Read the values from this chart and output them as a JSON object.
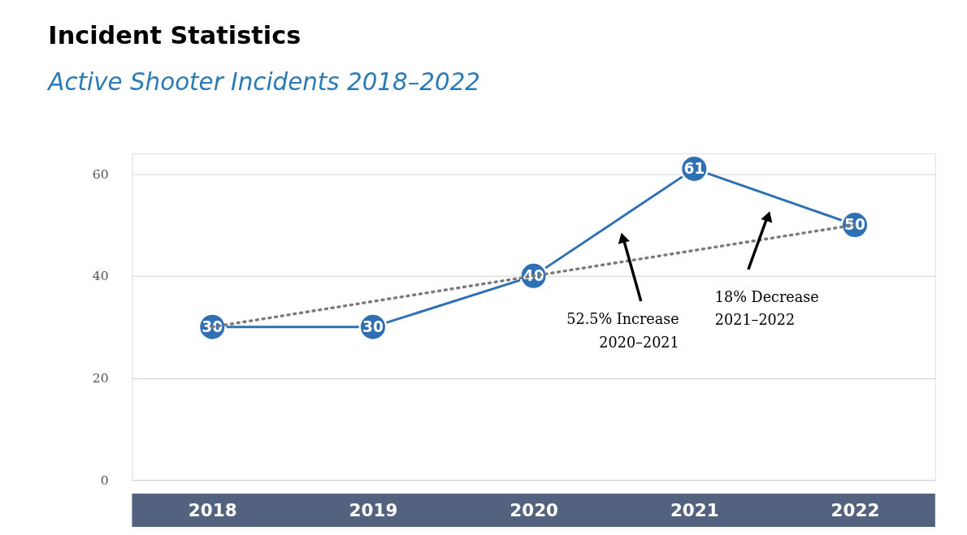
{
  "chart_data": {
    "type": "line",
    "title": "Incident Statistics",
    "subtitle": "Active Shooter Incidents 2018–2022",
    "categories": [
      "2018",
      "2019",
      "2020",
      "2021",
      "2022"
    ],
    "series": [
      {
        "color": "#2f6fb3",
        "values": [
          30,
          30,
          40,
          61,
          50
        ],
        "value_labels": [
          "30",
          "30",
          "40",
          "61",
          "50"
        ],
        "marker": "circle",
        "line_style": "solid"
      },
      {
        "type": "line",
        "values": [
          30,
          35,
          40,
          45,
          50
        ],
        "color": "#7a7a7a",
        "marker": "none",
        "line_style": "dotted"
      }
    ],
    "ylim": [
      0,
      64
    ],
    "yticks": [
      0,
      20,
      40,
      60
    ],
    "grid": "y",
    "annotations": [
      "52.5% Increase\n2020–2021",
      "18% Decrease\n2021–2022"
    ]
  }
}
